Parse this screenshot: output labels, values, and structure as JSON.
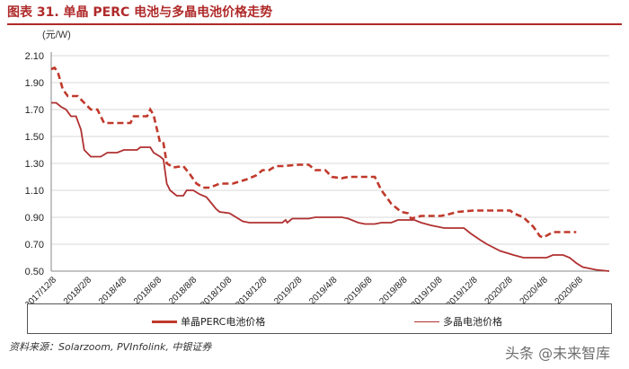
{
  "header": {
    "title": "图表 31. 单晶 PERC 电池与多晶电池价格走势",
    "unit": "(元/W)"
  },
  "colors": {
    "mono": "#c0392b",
    "poly": "#b03030",
    "accent": "#b02a2a"
  },
  "chart_data": {
    "type": "line",
    "ylabel": "(元/W)",
    "ylim": [
      0.5,
      2.1
    ],
    "yticks": [
      "0.50",
      "0.70",
      "0.90",
      "1.10",
      "1.30",
      "1.50",
      "1.70",
      "1.90",
      "2.10"
    ],
    "xticks": [
      "2017/12/8",
      "2018/2/8",
      "2018/4/8",
      "2018/6/8",
      "2018/8/8",
      "2018/10/8",
      "2018/12/8",
      "2019/2/8",
      "2019/4/8",
      "2019/6/8",
      "2019/8/8",
      "2019/10/8",
      "2019/12/8",
      "2020/2/8",
      "2020/4/8",
      "2020/6/8"
    ],
    "grid": "horizontal",
    "legend_position": "bottom",
    "series": [
      {
        "name": "单晶PERC电池价格",
        "style": "dashed",
        "color": "#c0392b",
        "points": [
          [
            0,
            2.0
          ],
          [
            0.1,
            2.01
          ],
          [
            0.2,
            1.98
          ],
          [
            0.35,
            1.85
          ],
          [
            0.5,
            1.8
          ],
          [
            0.8,
            1.8
          ],
          [
            1.0,
            1.75
          ],
          [
            1.2,
            1.7
          ],
          [
            1.4,
            1.7
          ],
          [
            1.6,
            1.6
          ],
          [
            2.0,
            1.6
          ],
          [
            2.4,
            1.6
          ],
          [
            2.5,
            1.65
          ],
          [
            2.9,
            1.65
          ],
          [
            2.95,
            1.67
          ],
          [
            3.0,
            1.7
          ],
          [
            3.1,
            1.66
          ],
          [
            3.3,
            1.45
          ],
          [
            3.4,
            1.45
          ],
          [
            3.5,
            1.3
          ],
          [
            3.7,
            1.27
          ],
          [
            4.0,
            1.28
          ],
          [
            4.2,
            1.22
          ],
          [
            4.4,
            1.15
          ],
          [
            4.6,
            1.12
          ],
          [
            4.8,
            1.12
          ],
          [
            5.1,
            1.15
          ],
          [
            5.5,
            1.15
          ],
          [
            5.9,
            1.18
          ],
          [
            6.2,
            1.21
          ],
          [
            6.4,
            1.25
          ],
          [
            6.6,
            1.25
          ],
          [
            6.8,
            1.28
          ],
          [
            7.0,
            1.28
          ],
          [
            7.5,
            1.29
          ],
          [
            7.8,
            1.29
          ],
          [
            8.0,
            1.25
          ],
          [
            8.3,
            1.25
          ],
          [
            8.5,
            1.2
          ],
          [
            8.8,
            1.19
          ],
          [
            9.0,
            1.2
          ],
          [
            9.5,
            1.2
          ],
          [
            9.8,
            1.2
          ],
          [
            10.0,
            1.1
          ],
          [
            10.3,
            1.0
          ],
          [
            10.6,
            0.94
          ],
          [
            10.8,
            0.93
          ],
          [
            10.9,
            0.89
          ],
          [
            11.2,
            0.91
          ],
          [
            11.8,
            0.91
          ],
          [
            12.0,
            0.92
          ],
          [
            12.3,
            0.94
          ],
          [
            12.8,
            0.95
          ],
          [
            13.5,
            0.95
          ],
          [
            13.9,
            0.95
          ],
          [
            14.0,
            0.93
          ],
          [
            14.3,
            0.9
          ],
          [
            14.6,
            0.83
          ],
          [
            14.8,
            0.76
          ],
          [
            14.9,
            0.75
          ],
          [
            15.2,
            0.79
          ],
          [
            15.9,
            0.79
          ]
        ]
      },
      {
        "name": "多晶电池价格",
        "style": "solid",
        "color": "#b03030",
        "points": [
          [
            0,
            1.75
          ],
          [
            0.15,
            1.75
          ],
          [
            0.3,
            1.72
          ],
          [
            0.45,
            1.7
          ],
          [
            0.6,
            1.65
          ],
          [
            0.75,
            1.65
          ],
          [
            0.9,
            1.55
          ],
          [
            1.0,
            1.4
          ],
          [
            1.2,
            1.35
          ],
          [
            1.5,
            1.35
          ],
          [
            1.7,
            1.38
          ],
          [
            2.0,
            1.38
          ],
          [
            2.2,
            1.4
          ],
          [
            2.6,
            1.4
          ],
          [
            2.7,
            1.42
          ],
          [
            3.0,
            1.42
          ],
          [
            3.1,
            1.38
          ],
          [
            3.3,
            1.35
          ],
          [
            3.4,
            1.33
          ],
          [
            3.5,
            1.15
          ],
          [
            3.6,
            1.1
          ],
          [
            3.8,
            1.06
          ],
          [
            4.0,
            1.06
          ],
          [
            4.1,
            1.1
          ],
          [
            4.3,
            1.1
          ],
          [
            4.5,
            1.07
          ],
          [
            4.7,
            1.05
          ],
          [
            4.9,
            0.99
          ],
          [
            5.0,
            0.96
          ],
          [
            5.1,
            0.94
          ],
          [
            5.4,
            0.93
          ],
          [
            5.6,
            0.9
          ],
          [
            5.8,
            0.87
          ],
          [
            6.0,
            0.86
          ],
          [
            6.5,
            0.86
          ],
          [
            7.0,
            0.86
          ],
          [
            7.1,
            0.88
          ],
          [
            7.15,
            0.86
          ],
          [
            7.3,
            0.89
          ],
          [
            7.5,
            0.89
          ],
          [
            7.8,
            0.89
          ],
          [
            8.0,
            0.9
          ],
          [
            8.5,
            0.9
          ],
          [
            8.8,
            0.9
          ],
          [
            9.0,
            0.89
          ],
          [
            9.3,
            0.86
          ],
          [
            9.5,
            0.85
          ],
          [
            9.8,
            0.85
          ],
          [
            10.0,
            0.86
          ],
          [
            10.3,
            0.86
          ],
          [
            10.5,
            0.88
          ],
          [
            11.0,
            0.88
          ],
          [
            11.2,
            0.86
          ],
          [
            11.5,
            0.84
          ],
          [
            11.9,
            0.82
          ],
          [
            12.5,
            0.82
          ],
          [
            12.7,
            0.78
          ],
          [
            13.0,
            0.73
          ],
          [
            13.2,
            0.7
          ],
          [
            13.6,
            0.65
          ],
          [
            14.0,
            0.62
          ],
          [
            14.3,
            0.6
          ],
          [
            14.6,
            0.6
          ],
          [
            14.9,
            0.6
          ],
          [
            15.0,
            0.6
          ],
          [
            15.2,
            0.62
          ],
          [
            15.5,
            0.62
          ],
          [
            15.7,
            0.6
          ],
          [
            15.9,
            0.56
          ],
          [
            16.1,
            0.53
          ],
          [
            16.3,
            0.52
          ],
          [
            16.5,
            0.51
          ],
          [
            16.9,
            0.5
          ]
        ]
      }
    ]
  },
  "legend": {
    "mono": "单晶PERC电池价格",
    "poly": "多晶电池价格"
  },
  "footer": {
    "source": "资料来源：Solarzoom, PVInfolink, 中银证券",
    "watermark": "头条 @未来智库"
  }
}
